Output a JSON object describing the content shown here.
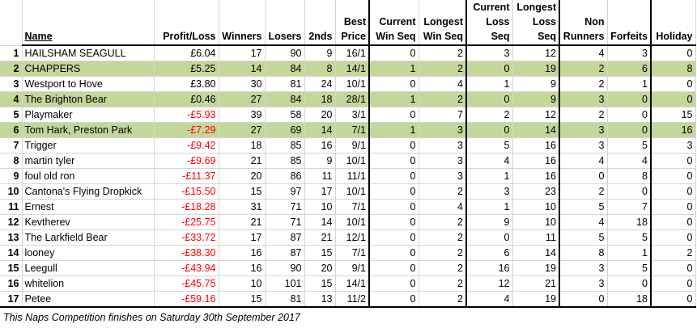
{
  "headers": {
    "name": "Name",
    "profit_loss": "Profit/Loss",
    "winners": "Winners",
    "losers": "Losers",
    "seconds": "2nds",
    "best_price": "Best Price",
    "current_win_seq": "Current Win Seq",
    "longest_win_seq": "Longest Win Seq",
    "current_loss_seq": "Current Loss Seq",
    "longest_loss_seq": "Longest Loss Seq",
    "non_runners": "Non Runners",
    "forfeits": "Forfeits",
    "holiday": "Holiday"
  },
  "rows": [
    {
      "pos": "1",
      "name": "HAILSHAM SEAGULL",
      "pl": "£6.04",
      "winners": "17",
      "losers": "90",
      "seconds": "9",
      "best": "16/1",
      "cws": "0",
      "lws": "2",
      "cls": "3",
      "lls": "12",
      "nr": "4",
      "forfeits": "3",
      "holiday": "0",
      "highlight": false,
      "negative": false
    },
    {
      "pos": "2",
      "name": "CHAPPERS",
      "pl": "£5.25",
      "winners": "14",
      "losers": "84",
      "seconds": "8",
      "best": "14/1",
      "cws": "1",
      "lws": "2",
      "cls": "0",
      "lls": "19",
      "nr": "2",
      "forfeits": "6",
      "holiday": "8",
      "highlight": true,
      "negative": false
    },
    {
      "pos": "3",
      "name": "Westport to Hove",
      "pl": "£3.80",
      "winners": "30",
      "losers": "81",
      "seconds": "24",
      "best": "10/1",
      "cws": "0",
      "lws": "4",
      "cls": "1",
      "lls": "9",
      "nr": "2",
      "forfeits": "1",
      "holiday": "0",
      "highlight": false,
      "negative": false
    },
    {
      "pos": "4",
      "name": "The Brighton Bear",
      "pl": "£0.46",
      "winners": "27",
      "losers": "84",
      "seconds": "18",
      "best": "28/1",
      "cws": "1",
      "lws": "2",
      "cls": "0",
      "lls": "9",
      "nr": "3",
      "forfeits": "0",
      "holiday": "0",
      "highlight": true,
      "negative": false
    },
    {
      "pos": "5",
      "name": "Playmaker",
      "pl": "-£5.93",
      "winners": "39",
      "losers": "58",
      "seconds": "20",
      "best": "3/1",
      "cws": "0",
      "lws": "7",
      "cls": "2",
      "lls": "12",
      "nr": "2",
      "forfeits": "0",
      "holiday": "15",
      "highlight": false,
      "negative": true
    },
    {
      "pos": "6",
      "name": "Tom Hark, Preston Park",
      "pl": "-£7.29",
      "winners": "27",
      "losers": "69",
      "seconds": "14",
      "best": "7/1",
      "cws": "1",
      "lws": "3",
      "cls": "0",
      "lls": "14",
      "nr": "3",
      "forfeits": "0",
      "holiday": "16",
      "highlight": true,
      "negative": true
    },
    {
      "pos": "7",
      "name": "Trigger",
      "pl": "-£9.42",
      "winners": "18",
      "losers": "85",
      "seconds": "16",
      "best": "9/1",
      "cws": "0",
      "lws": "3",
      "cls": "5",
      "lls": "16",
      "nr": "3",
      "forfeits": "5",
      "holiday": "3",
      "highlight": false,
      "negative": true
    },
    {
      "pos": "8",
      "name": "martin tyler",
      "pl": "-£9.69",
      "winners": "21",
      "losers": "85",
      "seconds": "9",
      "best": "10/1",
      "cws": "0",
      "lws": "3",
      "cls": "4",
      "lls": "16",
      "nr": "4",
      "forfeits": "4",
      "holiday": "0",
      "highlight": false,
      "negative": true
    },
    {
      "pos": "9",
      "name": "foul old ron",
      "pl": "-£11.37",
      "winners": "20",
      "losers": "86",
      "seconds": "11",
      "best": "11/1",
      "cws": "0",
      "lws": "3",
      "cls": "1",
      "lls": "16",
      "nr": "0",
      "forfeits": "8",
      "holiday": "0",
      "highlight": false,
      "negative": true
    },
    {
      "pos": "10",
      "name": "Cantona's Flying Dropkick",
      "pl": "-£15.50",
      "winners": "15",
      "losers": "97",
      "seconds": "17",
      "best": "10/1",
      "cws": "0",
      "lws": "2",
      "cls": "3",
      "lls": "23",
      "nr": "2",
      "forfeits": "0",
      "holiday": "0",
      "highlight": false,
      "negative": true
    },
    {
      "pos": "11",
      "name": "Ernest",
      "pl": "-£18.28",
      "winners": "31",
      "losers": "71",
      "seconds": "10",
      "best": "7/1",
      "cws": "0",
      "lws": "4",
      "cls": "1",
      "lls": "10",
      "nr": "5",
      "forfeits": "7",
      "holiday": "0",
      "highlight": false,
      "negative": true
    },
    {
      "pos": "12",
      "name": "Kevtherev",
      "pl": "-£25.75",
      "winners": "21",
      "losers": "71",
      "seconds": "14",
      "best": "10/1",
      "cws": "0",
      "lws": "2",
      "cls": "9",
      "lls": "10",
      "nr": "4",
      "forfeits": "18",
      "holiday": "0",
      "highlight": false,
      "negative": true
    },
    {
      "pos": "13",
      "name": "The Larkfield Bear",
      "pl": "-£33.72",
      "winners": "17",
      "losers": "87",
      "seconds": "21",
      "best": "12/1",
      "cws": "0",
      "lws": "2",
      "cls": "0",
      "lls": "11",
      "nr": "5",
      "forfeits": "5",
      "holiday": "0",
      "highlight": false,
      "negative": true
    },
    {
      "pos": "14",
      "name": "looney",
      "pl": "-£38.30",
      "winners": "16",
      "losers": "87",
      "seconds": "15",
      "best": "7/1",
      "cws": "0",
      "lws": "2",
      "cls": "6",
      "lls": "14",
      "nr": "8",
      "forfeits": "1",
      "holiday": "2",
      "highlight": false,
      "negative": true
    },
    {
      "pos": "15",
      "name": "Leegull",
      "pl": "-£43.94",
      "winners": "16",
      "losers": "90",
      "seconds": "20",
      "best": "9/1",
      "cws": "0",
      "lws": "2",
      "cls": "16",
      "lls": "19",
      "nr": "3",
      "forfeits": "5",
      "holiday": "0",
      "highlight": false,
      "negative": true
    },
    {
      "pos": "16",
      "name": "whitelion",
      "pl": "-£45.75",
      "winners": "10",
      "losers": "101",
      "seconds": "15",
      "best": "14/1",
      "cws": "0",
      "lws": "2",
      "cls": "12",
      "lls": "21",
      "nr": "3",
      "forfeits": "0",
      "holiday": "0",
      "highlight": false,
      "negative": true
    },
    {
      "pos": "17",
      "name": "Petee",
      "pl": "-£59.16",
      "winners": "15",
      "losers": "81",
      "seconds": "13",
      "best": "11/2",
      "cws": "0",
      "lws": "2",
      "cls": "4",
      "lls": "19",
      "nr": "0",
      "forfeits": "18",
      "holiday": "0",
      "highlight": false,
      "negative": true
    }
  ],
  "footnote": "This Naps Competition finishes on Saturday 30th September 2017"
}
